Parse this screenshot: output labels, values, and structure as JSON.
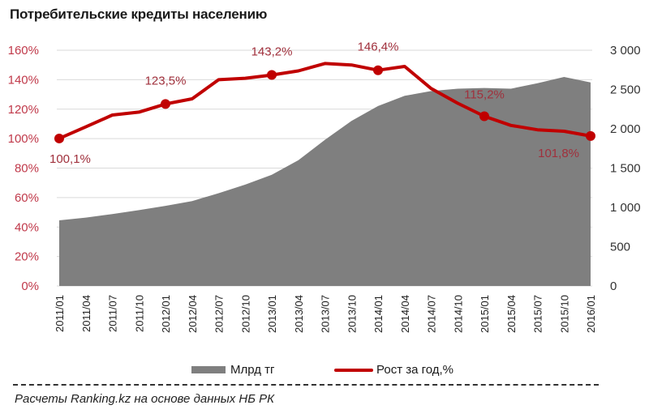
{
  "title": "Потребительские  кредиты населению",
  "source_note": "Расчеты Ranking.kz на основе данных НБ РК",
  "legend": {
    "area_label": "Млрд тг",
    "line_label": "Рост за год,%"
  },
  "colors": {
    "area": "#7f7f7f",
    "line": "#c00000",
    "left_axis_text": "#c0394a",
    "gridline": "#d9d9d9"
  },
  "axes": {
    "left_ticks": [
      "0%",
      "20%",
      "40%",
      "60%",
      "80%",
      "100%",
      "120%",
      "140%",
      "160%"
    ],
    "right_ticks": [
      "0",
      "500",
      "1 000",
      "1 500",
      "2 000",
      "2 500",
      "3 000"
    ],
    "x_ticks": [
      "2011/01",
      "2011/04",
      "2011/07",
      "2011/10",
      "2012/01",
      "2012/04",
      "2012/07",
      "2012/10",
      "2013/01",
      "2013/04",
      "2013/07",
      "2013/10",
      "2014/01",
      "2014/04",
      "2014/07",
      "2014/10",
      "2015/01",
      "2015/04",
      "2015/07",
      "2015/10",
      "2016/01"
    ]
  },
  "data_labels": [
    {
      "x": "2011/01",
      "text": "100,1%"
    },
    {
      "x": "2012/01",
      "text": "123,5%"
    },
    {
      "x": "2013/01",
      "text": "143,2%"
    },
    {
      "x": "2014/01",
      "text": "146,4%"
    },
    {
      "x": "2015/01",
      "text": "115,2%"
    },
    {
      "x": "2016/01",
      "text": "101,8%"
    }
  ],
  "chart_data": {
    "type": "area+line",
    "title": "Потребительские  кредиты населению",
    "xlabel": "",
    "ylabel_left": "Рост за год, %",
    "ylabel_right": "Млрд тг",
    "ylim_left": [
      0,
      160
    ],
    "ylim_right": [
      0,
      3000
    ],
    "grid": true,
    "legend_position": "bottom",
    "categories": [
      "2011/01",
      "2011/04",
      "2011/07",
      "2011/10",
      "2012/01",
      "2012/04",
      "2012/07",
      "2012/10",
      "2013/01",
      "2013/04",
      "2013/07",
      "2013/10",
      "2014/01",
      "2014/04",
      "2014/07",
      "2014/10",
      "2015/01",
      "2015/04",
      "2015/07",
      "2015/10",
      "2016/01"
    ],
    "series": [
      {
        "name": "Млрд тг",
        "type": "area",
        "axis": "right",
        "values": [
          835,
          870,
          915,
          965,
          1020,
          1080,
          1180,
          1290,
          1415,
          1600,
          1860,
          2100,
          2290,
          2420,
          2480,
          2510,
          2520,
          2510,
          2580,
          2660,
          2590
        ]
      },
      {
        "name": "Рост за год,%",
        "type": "line",
        "axis": "left",
        "values": [
          100.1,
          108,
          116,
          118,
          123.5,
          127,
          140,
          141,
          143.2,
          146,
          151,
          150,
          146.4,
          149,
          134,
          124,
          115.2,
          109,
          106,
          105,
          101.8
        ]
      }
    ],
    "annotations": [
      "100,1%",
      "123,5%",
      "143,2%",
      "146,4%",
      "115,2%",
      "101,8%"
    ]
  }
}
